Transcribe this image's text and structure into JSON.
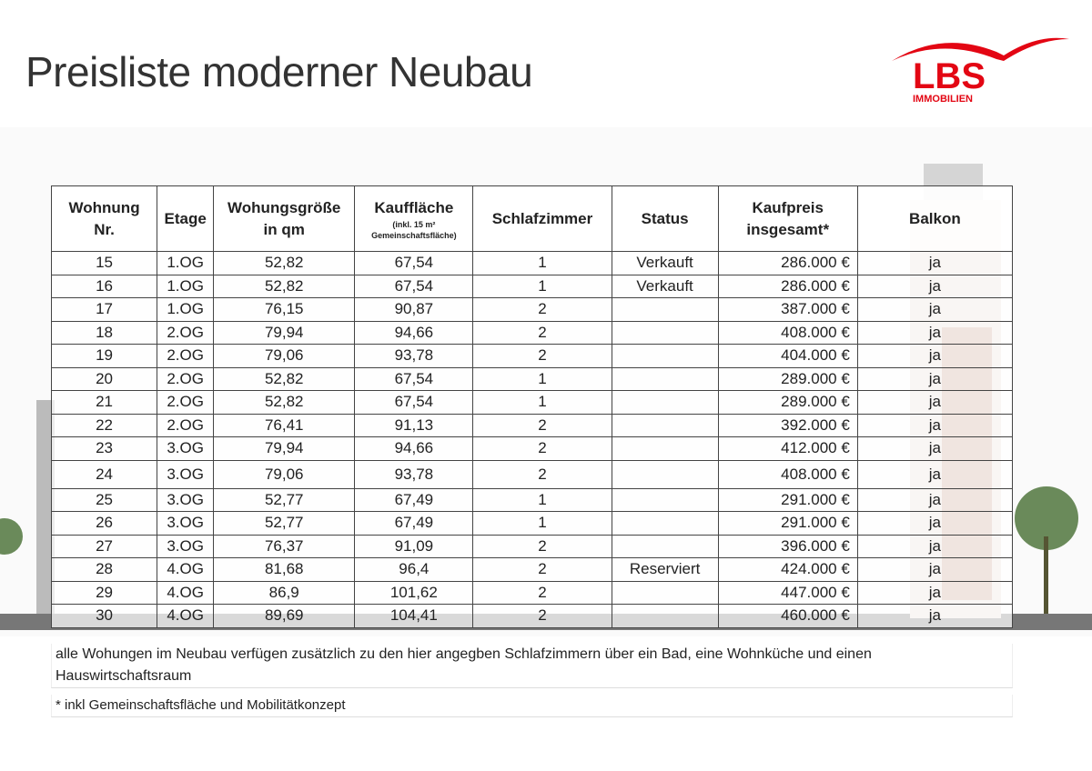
{
  "title": "Preisliste moderner Neubau",
  "logo": {
    "text": "LBS",
    "subtext": "IMMOBILIEN",
    "color": "#e30613"
  },
  "table": {
    "headers": [
      {
        "main": "Wohnung Nr."
      },
      {
        "main": "Etage"
      },
      {
        "main": "Wohungsgröße in qm"
      },
      {
        "main": "Kauffläche",
        "sub": "(inkl. 15 m² Gemeinschaftsfläche)"
      },
      {
        "main": "Schlafzimmer"
      },
      {
        "main": "Status"
      },
      {
        "main": "Kaufpreis insgesamt*"
      },
      {
        "main": "Balkon"
      }
    ],
    "rows": [
      [
        "15",
        "1.OG",
        "52,82",
        "67,54",
        "1",
        "Verkauft",
        "286.000 €",
        "ja"
      ],
      [
        "16",
        "1.OG",
        "52,82",
        "67,54",
        "1",
        "Verkauft",
        "286.000 €",
        "ja"
      ],
      [
        "17",
        "1.OG",
        "76,15",
        "90,87",
        "2",
        "",
        "387.000 €",
        "ja"
      ],
      [
        "18",
        "2.OG",
        "79,94",
        "94,66",
        "2",
        "",
        "408.000 €",
        "ja"
      ],
      [
        "19",
        "2.OG",
        "79,06",
        "93,78",
        "2",
        "",
        "404.000 €",
        "ja"
      ],
      [
        "20",
        "2.OG",
        "52,82",
        "67,54",
        "1",
        "",
        "289.000 €",
        "ja"
      ],
      [
        "21",
        "2.OG",
        "52,82",
        "67,54",
        "1",
        "",
        "289.000 €",
        "ja"
      ],
      [
        "22",
        "2.OG",
        "76,41",
        "91,13",
        "2",
        "",
        "392.000 €",
        "ja"
      ],
      [
        "23",
        "3.OG",
        "79,94",
        "94,66",
        "2",
        "",
        "412.000 €",
        "ja"
      ],
      [
        "24",
        "3.OG",
        "79,06",
        "93,78",
        "2",
        "",
        "408.000 €",
        "ja"
      ],
      [
        "25",
        "3.OG",
        "52,77",
        "67,49",
        "1",
        "",
        "291.000 €",
        "ja"
      ],
      [
        "26",
        "3.OG",
        "52,77",
        "67,49",
        "1",
        "",
        "291.000 €",
        "ja"
      ],
      [
        "27",
        "3.OG",
        "76,37",
        "91,09",
        "2",
        "",
        "396.000 €",
        "ja"
      ],
      [
        "28",
        "4.OG",
        "81,68",
        "96,4",
        "2",
        "Reserviert",
        "424.000 €",
        "ja"
      ],
      [
        "29",
        "4.OG",
        "86,9",
        "101,62",
        "2",
        "",
        "447.000 €",
        "ja"
      ],
      [
        "30",
        "4.OG",
        "89,69",
        "104,41",
        "2",
        "",
        "460.000 €",
        "ja"
      ]
    ]
  },
  "notes": [
    "alle Wohungen im Neubau verfügen zusätzlich zu den hier angegben Schlafzimmern über ein Bad, eine Wohnküche und einen Hauswirtschaftsraum",
    "* inkl Gemeinschaftsfläche und Mobilitätkonzept"
  ]
}
